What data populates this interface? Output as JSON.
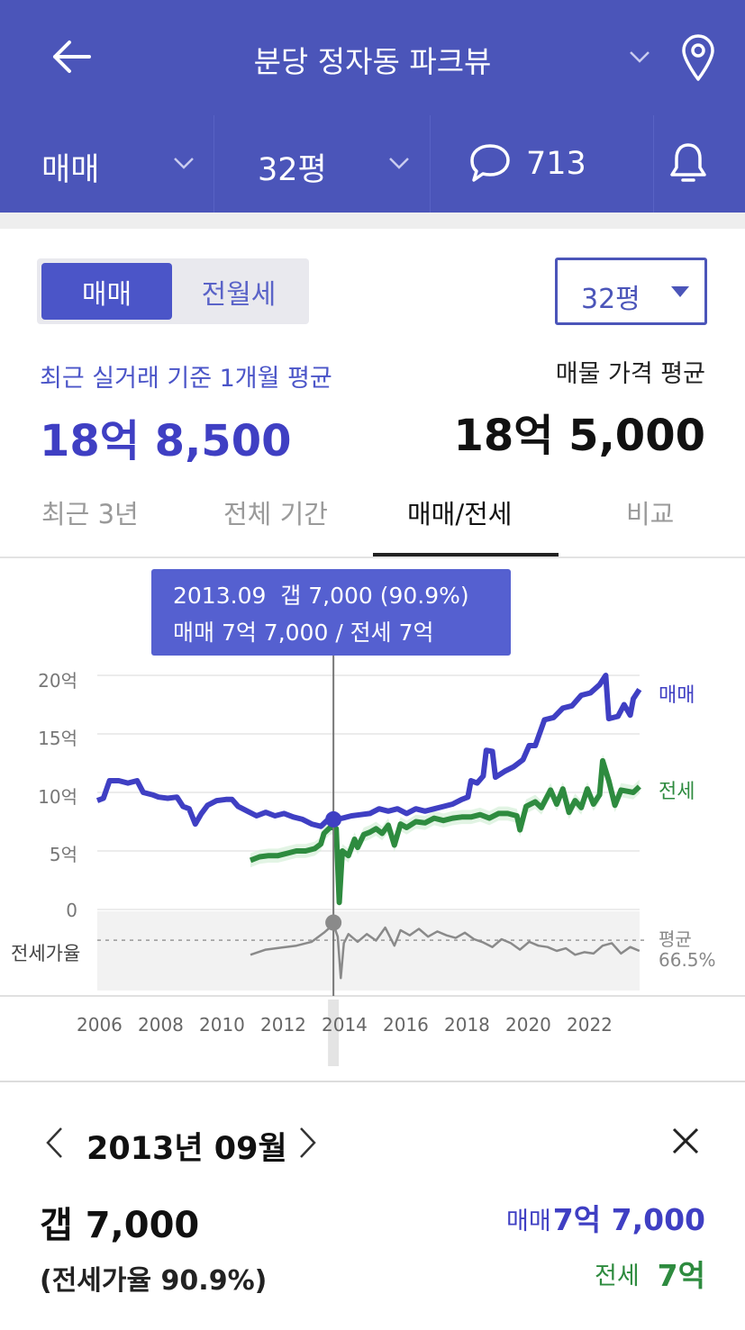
{
  "header": {
    "title": "분당 정자동 파크뷰",
    "back_icon": "arrow-left-icon",
    "dropdown_icon": "chevron-down-icon",
    "location_icon": "map-pin-icon"
  },
  "subbar": {
    "trade_type": "매매",
    "area": "32평",
    "comment_count": "713",
    "comment_icon": "speech-bubble-icon",
    "alarm_icon": "bell-icon"
  },
  "toggle": {
    "options": [
      "매매",
      "전월세"
    ],
    "selected": "매매",
    "area_select": "32평"
  },
  "prices": {
    "recent_label": "최근 실거래 기준 1개월 평균",
    "recent_value": "18억 8,500",
    "listing_label": "매물 가격 평균",
    "listing_value": "18억 5,000"
  },
  "tabs": [
    "최근 3년",
    "전체 기간",
    "매매/전세",
    "비교"
  ],
  "active_tab": "매매/전세",
  "tooltip": {
    "line1": "2013.09  갭 7,000 (90.9%)",
    "line2": "매매 7억 7,000 / 전세 7억"
  },
  "colors": {
    "brand": "#4b55b9",
    "sale": "#3f3fc3",
    "jeonse": "#2e8b3f",
    "ratio": "#888888"
  },
  "chart_data": {
    "type": "line",
    "x_ticks": [
      "2006",
      "2008",
      "2010",
      "2012",
      "2014",
      "2016",
      "2018",
      "2020",
      "2022"
    ],
    "y_ticks": [
      "20억",
      "15억",
      "10억",
      "5억",
      "0"
    ],
    "ylim": [
      0,
      20
    ],
    "ratio_label": "전세가율",
    "avg_label": "평균",
    "avg_value": "66.5%",
    "selected_x": 2013.71,
    "series": [
      {
        "name": "매매",
        "points": [
          [
            2006.0,
            9.3
          ],
          [
            2006.2,
            9.5
          ],
          [
            2006.4,
            11.0
          ],
          [
            2006.7,
            11.0
          ],
          [
            2007.0,
            10.8
          ],
          [
            2007.3,
            11.0
          ],
          [
            2007.5,
            10.0
          ],
          [
            2007.8,
            9.8
          ],
          [
            2008.0,
            9.6
          ],
          [
            2008.3,
            9.5
          ],
          [
            2008.6,
            9.6
          ],
          [
            2008.8,
            8.8
          ],
          [
            2009.0,
            8.6
          ],
          [
            2009.2,
            7.3
          ],
          [
            2009.4,
            8.2
          ],
          [
            2009.6,
            8.9
          ],
          [
            2009.9,
            9.3
          ],
          [
            2010.2,
            9.4
          ],
          [
            2010.4,
            9.4
          ],
          [
            2010.6,
            8.8
          ],
          [
            2010.9,
            8.4
          ],
          [
            2011.2,
            8.0
          ],
          [
            2011.5,
            8.3
          ],
          [
            2011.8,
            8.0
          ],
          [
            2012.1,
            8.2
          ],
          [
            2012.4,
            7.9
          ],
          [
            2012.7,
            7.7
          ],
          [
            2013.0,
            7.3
          ],
          [
            2013.3,
            7.1
          ],
          [
            2013.5,
            7.6
          ],
          [
            2013.71,
            7.7
          ],
          [
            2014.0,
            7.8
          ],
          [
            2014.3,
            8.0
          ],
          [
            2014.6,
            8.1
          ],
          [
            2014.9,
            8.2
          ],
          [
            2015.2,
            8.6
          ],
          [
            2015.5,
            8.4
          ],
          [
            2015.8,
            8.6
          ],
          [
            2016.1,
            8.2
          ],
          [
            2016.4,
            8.6
          ],
          [
            2016.7,
            8.4
          ],
          [
            2017.0,
            8.6
          ],
          [
            2017.3,
            8.8
          ],
          [
            2017.6,
            9.0
          ],
          [
            2017.9,
            9.4
          ],
          [
            2018.1,
            9.6
          ],
          [
            2018.2,
            11.0
          ],
          [
            2018.4,
            10.8
          ],
          [
            2018.6,
            11.4
          ],
          [
            2018.7,
            13.6
          ],
          [
            2018.9,
            13.5
          ],
          [
            2019.0,
            11.3
          ],
          [
            2019.3,
            11.8
          ],
          [
            2019.6,
            12.2
          ],
          [
            2019.9,
            12.8
          ],
          [
            2020.1,
            14.0
          ],
          [
            2020.3,
            14.0
          ],
          [
            2020.6,
            16.2
          ],
          [
            2020.9,
            16.4
          ],
          [
            2021.2,
            17.2
          ],
          [
            2021.5,
            17.4
          ],
          [
            2021.8,
            18.3
          ],
          [
            2022.1,
            18.5
          ],
          [
            2022.4,
            19.2
          ],
          [
            2022.6,
            20.0
          ],
          [
            2022.7,
            16.3
          ],
          [
            2023.0,
            16.5
          ],
          [
            2023.2,
            17.5
          ],
          [
            2023.4,
            16.6
          ],
          [
            2023.5,
            18.0
          ],
          [
            2023.7,
            18.8
          ]
        ]
      },
      {
        "name": "전세",
        "points": [
          [
            2011.0,
            4.2
          ],
          [
            2011.3,
            4.5
          ],
          [
            2011.6,
            4.6
          ],
          [
            2011.9,
            4.6
          ],
          [
            2012.2,
            4.8
          ],
          [
            2012.5,
            5.0
          ],
          [
            2012.8,
            5.0
          ],
          [
            2013.1,
            5.2
          ],
          [
            2013.3,
            5.6
          ],
          [
            2013.4,
            6.5
          ],
          [
            2013.6,
            7.0
          ],
          [
            2013.71,
            7.0
          ],
          [
            2013.8,
            6.9
          ],
          [
            2013.9,
            0.6
          ],
          [
            2014.0,
            5.0
          ],
          [
            2014.2,
            4.6
          ],
          [
            2014.4,
            6.0
          ],
          [
            2014.5,
            5.3
          ],
          [
            2014.7,
            6.4
          ],
          [
            2014.9,
            6.6
          ],
          [
            2015.1,
            6.9
          ],
          [
            2015.3,
            6.5
          ],
          [
            2015.5,
            7.2
          ],
          [
            2015.7,
            5.5
          ],
          [
            2015.9,
            7.3
          ],
          [
            2016.1,
            7.0
          ],
          [
            2016.4,
            7.5
          ],
          [
            2016.7,
            7.4
          ],
          [
            2017.0,
            7.8
          ],
          [
            2017.3,
            7.6
          ],
          [
            2017.6,
            7.8
          ],
          [
            2017.9,
            7.9
          ],
          [
            2018.2,
            7.9
          ],
          [
            2018.5,
            8.1
          ],
          [
            2018.8,
            7.8
          ],
          [
            2019.1,
            8.2
          ],
          [
            2019.4,
            8.2
          ],
          [
            2019.7,
            8.0
          ],
          [
            2019.8,
            6.8
          ],
          [
            2020.0,
            8.8
          ],
          [
            2020.3,
            9.2
          ],
          [
            2020.5,
            8.7
          ],
          [
            2020.8,
            10.2
          ],
          [
            2021.0,
            9.0
          ],
          [
            2021.2,
            10.3
          ],
          [
            2021.4,
            8.3
          ],
          [
            2021.6,
            9.3
          ],
          [
            2021.8,
            8.7
          ],
          [
            2022.0,
            10.3
          ],
          [
            2022.2,
            9.0
          ],
          [
            2022.4,
            9.8
          ],
          [
            2022.5,
            12.7
          ],
          [
            2022.7,
            11.0
          ],
          [
            2022.9,
            8.9
          ],
          [
            2023.1,
            10.2
          ],
          [
            2023.3,
            10.1
          ],
          [
            2023.5,
            10.0
          ],
          [
            2023.7,
            10.5
          ]
        ]
      },
      {
        "name": "전세가율",
        "points": [
          [
            2011.0,
            44
          ],
          [
            2011.5,
            52
          ],
          [
            2012.0,
            55
          ],
          [
            2012.5,
            58
          ],
          [
            2013.0,
            64
          ],
          [
            2013.4,
            78
          ],
          [
            2013.71,
            90.9
          ],
          [
            2013.85,
            72
          ],
          [
            2013.95,
            8
          ],
          [
            2014.05,
            62
          ],
          [
            2014.2,
            76
          ],
          [
            2014.5,
            64
          ],
          [
            2014.8,
            76
          ],
          [
            2015.1,
            66
          ],
          [
            2015.4,
            86
          ],
          [
            2015.7,
            58
          ],
          [
            2015.9,
            82
          ],
          [
            2016.2,
            74
          ],
          [
            2016.5,
            84
          ],
          [
            2016.8,
            72
          ],
          [
            2017.1,
            80
          ],
          [
            2017.4,
            74
          ],
          [
            2017.7,
            70
          ],
          [
            2018.0,
            78
          ],
          [
            2018.3,
            68
          ],
          [
            2018.6,
            63
          ],
          [
            2018.9,
            56
          ],
          [
            2019.2,
            68
          ],
          [
            2019.5,
            62
          ],
          [
            2019.8,
            52
          ],
          [
            2020.1,
            64
          ],
          [
            2020.4,
            58
          ],
          [
            2020.7,
            56
          ],
          [
            2021.0,
            50
          ],
          [
            2021.3,
            54
          ],
          [
            2021.6,
            44
          ],
          [
            2021.9,
            48
          ],
          [
            2022.2,
            46
          ],
          [
            2022.5,
            58
          ],
          [
            2022.8,
            62
          ],
          [
            2023.1,
            46
          ],
          [
            2023.4,
            56
          ],
          [
            2023.7,
            50
          ]
        ]
      }
    ]
  },
  "detail": {
    "date": "2013년 09월",
    "prev_icon": "chevron-left-icon",
    "next_icon": "chevron-right-icon",
    "close_icon": "close-icon",
    "gap": "갭 7,000",
    "ratio": "(전세가율 90.9%)",
    "sale_label": "매매",
    "sale_value": "7억 7,000",
    "jeonse_label": "전세",
    "jeonse_value": "7억"
  }
}
